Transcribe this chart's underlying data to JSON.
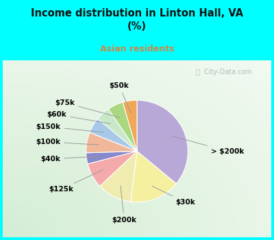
{
  "title": "Income distribution in Linton Hall, VA\n(%)",
  "subtitle": "Asian residents",
  "title_color": "#111111",
  "subtitle_color": "#cc8844",
  "background_outer": "#00ffff",
  "background_inner_color": "#e8f5ee",
  "labels": [
    "> $200k",
    "$30k",
    "$200k",
    "$125k",
    "$40k",
    "$100k",
    "$150k",
    "$60k",
    "$75k",
    "$50k"
  ],
  "values": [
    36.0,
    16.0,
    11.0,
    8.0,
    3.5,
    6.5,
    5.0,
    4.5,
    5.0,
    4.5
  ],
  "colors": [
    "#b8a8d8",
    "#f5f0a0",
    "#f0ecb0",
    "#f4aaaa",
    "#8888cc",
    "#f0b898",
    "#a8c8e8",
    "#c8e8c8",
    "#aad880",
    "#f0a858"
  ],
  "label_fontsize": 7.5,
  "startangle": 90,
  "watermark": "  City-Data.com"
}
